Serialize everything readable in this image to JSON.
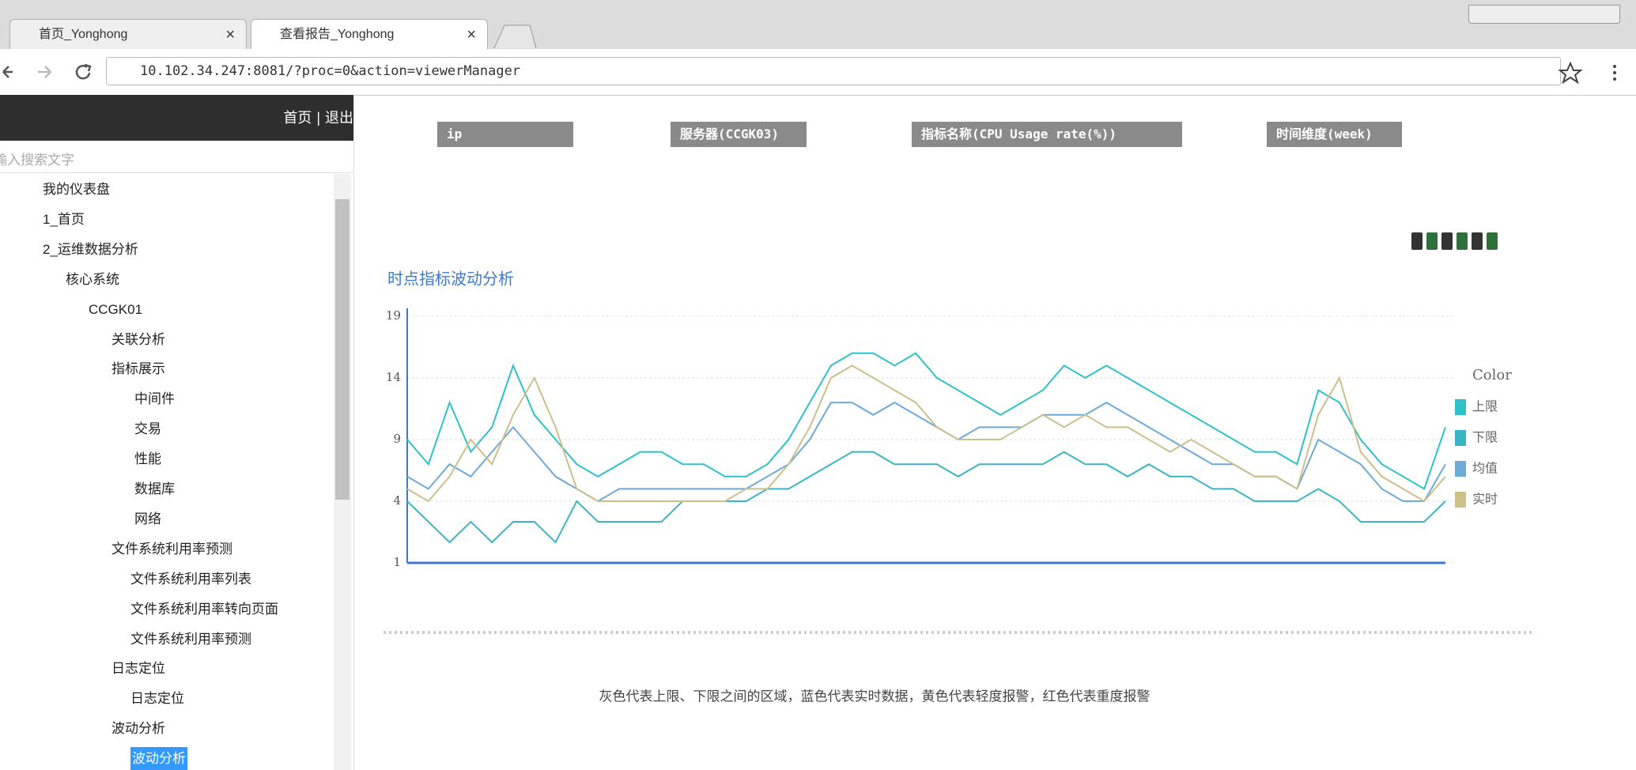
{
  "browser": {
    "tabs": [
      "首页_Yonghong",
      "查看报告_Yonghong"
    ],
    "url": "10.102.34.247:8081/?proc=0&action=viewerManager"
  },
  "sidebar": {
    "links": [
      "首页",
      "退出"
    ],
    "search_placeholder": "输入搜索文字",
    "tree": [
      {
        "label": "我的仪表盘"
      },
      {
        "label": "1_首页"
      },
      {
        "label": "2_运维数据分析",
        "children": [
          {
            "label": "核心系统",
            "expanded": true,
            "children": [
              {
                "label": "CCGK01",
                "expanded": true,
                "children": [
                  {
                    "label": "关联分析",
                    "expanded": false
                  },
                  {
                    "label": "指标展示",
                    "expanded": true,
                    "children": [
                      {
                        "label": "中间件",
                        "expanded": false
                      },
                      {
                        "label": "交易",
                        "expanded": false
                      },
                      {
                        "label": "性能",
                        "expanded": false
                      },
                      {
                        "label": "数据库",
                        "expanded": false
                      },
                      {
                        "label": "网络",
                        "expanded": false
                      }
                    ]
                  },
                  {
                    "label": "文件系统利用率预测",
                    "expanded": true,
                    "children": [
                      {
                        "label": "文件系统利用率列表",
                        "type": "report"
                      },
                      {
                        "label": "文件系统利用率转向页面",
                        "type": "report"
                      },
                      {
                        "label": "文件系统利用率预测",
                        "type": "report"
                      }
                    ]
                  },
                  {
                    "label": "日志定位",
                    "expanded": true,
                    "children": [
                      {
                        "label": "日志定位",
                        "type": "report"
                      }
                    ]
                  },
                  {
                    "label": "波动分析",
                    "expanded": true,
                    "children": [
                      {
                        "label": "波动分析",
                        "type": "report",
                        "selected": true
                      }
                    ]
                  }
                ]
              }
            ]
          }
        ]
      }
    ]
  },
  "filters": [
    "ip",
    "服务器(CCGK03)",
    "指标名称(CPU Usage rate(%))",
    "时间维度(week)"
  ],
  "chart_data": {
    "type": "line",
    "title": "时点指标波动分析",
    "ylim": [
      1,
      19
    ],
    "yticks": [
      1,
      4,
      9,
      14,
      19
    ],
    "grid": true,
    "legend_title": "Color",
    "series": [
      {
        "name": "上限",
        "color": "#2fc0c8",
        "values": [
          9,
          7,
          12,
          8,
          10,
          15,
          11,
          9,
          7,
          6,
          7,
          8,
          8,
          7,
          7,
          6,
          6,
          7,
          9,
          12,
          15,
          16,
          16,
          15,
          16,
          14,
          13,
          12,
          11,
          12,
          13,
          15,
          14,
          15,
          14,
          13,
          12,
          11,
          10,
          9,
          8,
          8,
          7,
          13,
          12,
          9,
          7,
          6,
          5,
          10
        ]
      },
      {
        "name": "下限",
        "color": "#3bb4c4",
        "values": [
          4,
          3,
          2,
          3,
          2,
          3,
          3,
          2,
          4,
          3,
          3,
          3,
          3,
          4,
          4,
          4,
          4,
          5,
          5,
          6,
          7,
          8,
          8,
          7,
          7,
          7,
          6,
          7,
          7,
          7,
          7,
          8,
          7,
          7,
          6,
          7,
          6,
          6,
          5,
          5,
          4,
          4,
          4,
          5,
          4,
          3,
          3,
          3,
          3,
          4
        ]
      },
      {
        "name": "均值",
        "color": "#6fa9d6",
        "values": [
          6,
          5,
          7,
          6,
          8,
          10,
          8,
          6,
          5,
          4,
          5,
          5,
          5,
          5,
          5,
          5,
          5,
          6,
          7,
          9,
          12,
          12,
          11,
          12,
          11,
          10,
          9,
          10,
          10,
          10,
          11,
          11,
          11,
          12,
          11,
          10,
          9,
          8,
          7,
          7,
          6,
          6,
          5,
          9,
          8,
          7,
          5,
          4,
          4,
          7
        ]
      },
      {
        "name": "实时",
        "color": "#cbbf8c",
        "values": [
          5,
          4,
          6,
          9,
          7,
          11,
          14,
          10,
          5,
          4,
          4,
          4,
          4,
          4,
          4,
          4,
          5,
          5,
          7,
          10,
          14,
          15,
          14,
          13,
          12,
          10,
          9,
          9,
          9,
          10,
          11,
          10,
          11,
          10,
          10,
          9,
          8,
          9,
          8,
          7,
          6,
          6,
          5,
          11,
          14,
          8,
          6,
          5,
          4,
          6
        ]
      }
    ],
    "caption": "灰色代表上限、下限之间的区域，蓝色代表实时数据，黄色代表轻度报警，红色代表重度报警"
  }
}
